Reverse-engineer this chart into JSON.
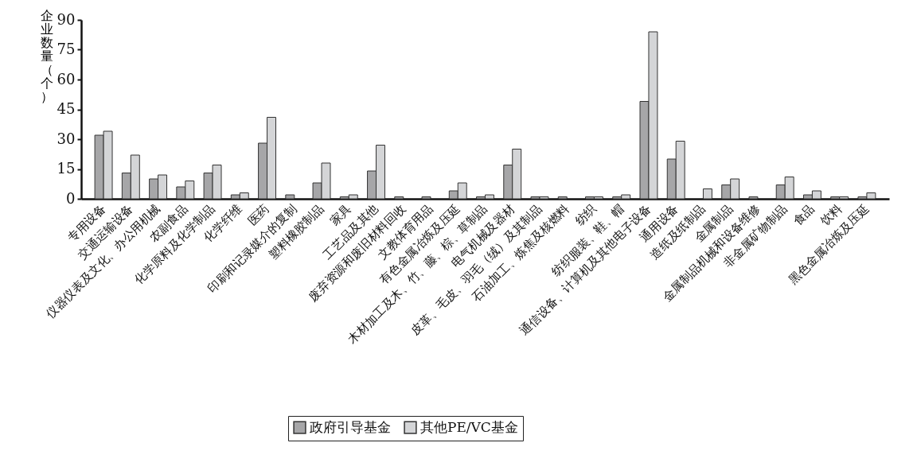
{
  "chart_data": {
    "type": "bar",
    "ylabel": "企业数量（个）",
    "categories": [
      "专用设备",
      "交通运输设备",
      "仪器仪表及文化、办公用机械",
      "农副食品",
      "化学原料及化学制品",
      "化学纤维",
      "医药",
      "印刷和记录媒介的复制",
      "塑料橡胶制品",
      "家具",
      "工艺品及其他",
      "废弃资源和废旧材料回收",
      "文教体育用品",
      "有色金属冶炼及压延",
      "木材加工及木、竹、藤、棕、草制品",
      "电气机械及器材",
      "皮革、毛皮、羽毛（绒）及其制品",
      "石油加工、炼焦及核燃料",
      "纺织",
      "纺织服装、鞋、帽",
      "通信设备、计算机及其他电子设备",
      "通用设备",
      "造纸及纸制品",
      "金属制品",
      "金属制品机械和设备维修",
      "非金属矿物制品",
      "食品",
      "饮料",
      "黑色金属冶炼及压延"
    ],
    "series": [
      {
        "name": "政府引导基金",
        "color": "#a6a6a8",
        "values": [
          32,
          13,
          10,
          6,
          13,
          2,
          28,
          2,
          8,
          1,
          14,
          1,
          1,
          4,
          1,
          17,
          1,
          1,
          1,
          1,
          49,
          20,
          0,
          7,
          1,
          7,
          2,
          1,
          1
        ]
      },
      {
        "name": "其他PE/VC基金",
        "color": "#d4d5d7",
        "values": [
          34,
          22,
          12,
          9,
          17,
          3,
          41,
          0,
          18,
          2,
          27,
          0,
          0,
          8,
          2,
          25,
          1,
          0,
          1,
          2,
          84,
          29,
          5,
          10,
          0,
          11,
          4,
          1,
          3
        ]
      }
    ],
    "ylim": [
      0,
      90
    ],
    "yticks": [
      0,
      15,
      30,
      45,
      60,
      75,
      90
    ],
    "grid": false,
    "legend": "bottom"
  }
}
